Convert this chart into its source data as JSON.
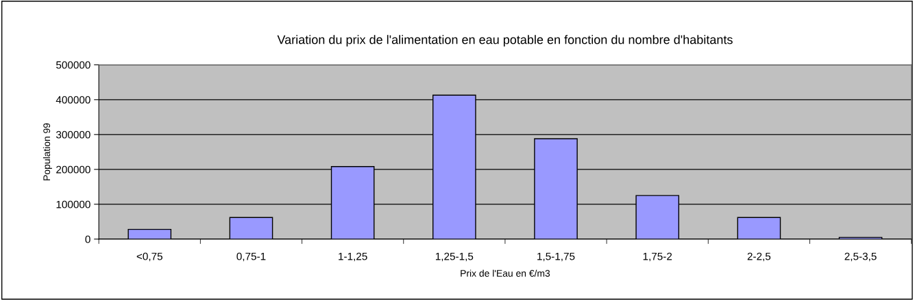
{
  "chart_data": {
    "type": "bar",
    "title": "Variation du prix de l'alimentation en eau potable en fonction du nombre d'habitants",
    "xlabel": "Prix de l'Eau en €/m3",
    "ylabel": "Population 99",
    "categories": [
      "<0,75",
      "0,75-1",
      "1-1,25",
      "1,25-1,5",
      "1,5-1,75",
      "1,75-2",
      "2-2,5",
      "2,5-3,5"
    ],
    "values": [
      28000,
      62000,
      208000,
      413000,
      288000,
      125000,
      62000,
      5000
    ],
    "color": "#9999ff",
    "ylim": [
      0,
      500000
    ],
    "yticks": [
      0,
      100000,
      200000,
      300000,
      400000,
      500000
    ],
    "grid": "y",
    "legend": false
  }
}
